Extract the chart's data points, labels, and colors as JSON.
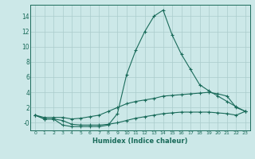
{
  "xlabel": "Humidex (Indice chaleur)",
  "x_values": [
    0,
    1,
    2,
    3,
    4,
    5,
    6,
    7,
    8,
    9,
    10,
    11,
    12,
    13,
    14,
    15,
    16,
    17,
    18,
    19,
    20,
    21,
    22,
    23
  ],
  "line1": [
    1.0,
    0.5,
    0.5,
    -0.3,
    -0.5,
    -0.5,
    -0.5,
    -0.5,
    -0.3,
    1.2,
    6.3,
    9.5,
    12.0,
    14.0,
    14.8,
    11.5,
    9.0,
    7.0,
    5.0,
    4.2,
    3.5,
    2.8,
    2.1,
    1.5
  ],
  "line2": [
    1.0,
    0.7,
    0.7,
    0.7,
    0.5,
    0.6,
    0.8,
    1.0,
    1.5,
    2.0,
    2.5,
    2.8,
    3.0,
    3.2,
    3.5,
    3.6,
    3.7,
    3.8,
    3.9,
    4.0,
    3.8,
    3.5,
    2.0,
    1.5
  ],
  "line3": [
    1.0,
    0.5,
    0.5,
    0.3,
    -0.2,
    -0.3,
    -0.3,
    -0.3,
    -0.2,
    0.0,
    0.3,
    0.6,
    0.8,
    1.0,
    1.2,
    1.3,
    1.4,
    1.4,
    1.4,
    1.4,
    1.3,
    1.2,
    1.0,
    1.5
  ],
  "line_color": "#1a6b5a",
  "bg_color": "#cce8e8",
  "grid_color": "#aacccc",
  "ylim": [
    -1.0,
    15.5
  ],
  "xlim": [
    -0.5,
    23.5
  ],
  "yticks": [
    0,
    2,
    4,
    6,
    8,
    10,
    12,
    14
  ],
  "ytick_labels": [
    "-0",
    "2",
    "4",
    "6",
    "8",
    "10",
    "12",
    "14"
  ],
  "xtick_labels": [
    "0",
    "1",
    "2",
    "3",
    "4",
    "5",
    "6",
    "7",
    "8",
    "9",
    "10",
    "11",
    "12",
    "13",
    "14",
    "15",
    "16",
    "17",
    "18",
    "19",
    "20",
    "21",
    "22",
    "23"
  ]
}
